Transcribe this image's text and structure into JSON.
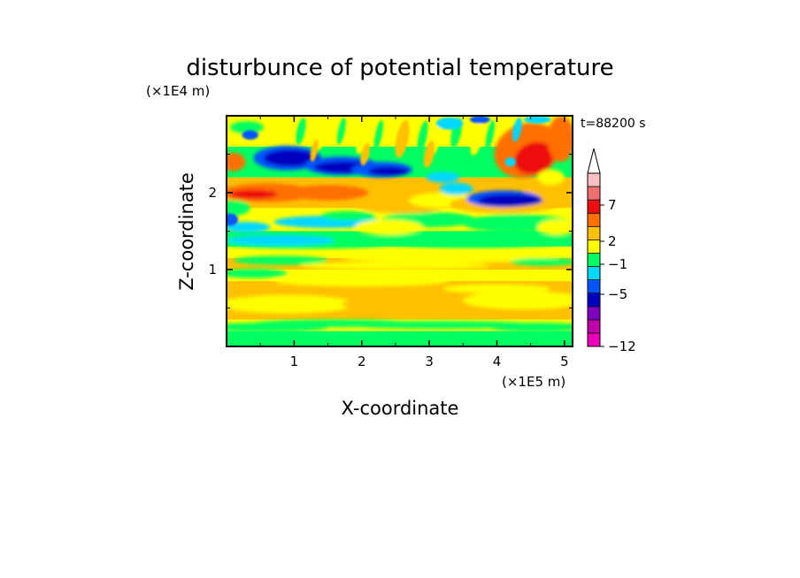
{
  "chart_data": {
    "type": "heatmap",
    "title": "disturbunce of potential temperature",
    "xlabel": "X-coordinate",
    "ylabel": "Z-coordinate",
    "x_unit": "(×1E5 m)",
    "y_unit": "(×1E4 m)",
    "time_label": "t=88200 s",
    "xlim": [
      0,
      5.12
    ],
    "ylim": [
      0,
      3.0
    ],
    "x_ticks": [
      1,
      2,
      3,
      4,
      5
    ],
    "x_tick_labels": [
      "1",
      "2",
      "3",
      "4",
      "5"
    ],
    "y_ticks": [
      1,
      2
    ],
    "y_tick_labels": [
      "1",
      "2"
    ],
    "colorbar": {
      "labels": [
        {
          "value": -12,
          "text": "−12"
        },
        {
          "value": -5,
          "text": "−5"
        },
        {
          "value": -1,
          "text": "−1"
        },
        {
          "value": 2,
          "text": "2"
        },
        {
          "value": 7,
          "text": "7"
        }
      ],
      "colors_bottom_to_top": [
        "#ee00bb",
        "#c000a8",
        "#8000c0",
        "#0000c0",
        "#0055ff",
        "#00d8ff",
        "#00ff60",
        "#ffff00",
        "#ffc000",
        "#ff7000",
        "#ee1010",
        "#f07070",
        "#f8c0c0"
      ],
      "extend": "max"
    },
    "field": {
      "description_rows_bottom_to_top": [
        {
          "z": [
            0.0,
            0.2
          ],
          "dominant": "green"
        },
        {
          "z": [
            0.2,
            0.35
          ],
          "dominant": "yellow"
        },
        {
          "z": [
            0.35,
            0.8
          ],
          "dominant": "orange"
        },
        {
          "z": [
            0.8,
            1.2
          ],
          "dominant": "yellow"
        },
        {
          "z": [
            1.2,
            1.5
          ],
          "dominant": "green"
        },
        {
          "z": [
            1.5,
            1.8
          ],
          "dominant": "cyan/green"
        },
        {
          "z": [
            1.8,
            2.2
          ],
          "dominant": "orange/red"
        },
        {
          "z": [
            2.2,
            2.7
          ],
          "dominant": "blue"
        },
        {
          "z": [
            2.7,
            3.0
          ],
          "dominant": "green/yellow"
        }
      ]
    }
  }
}
